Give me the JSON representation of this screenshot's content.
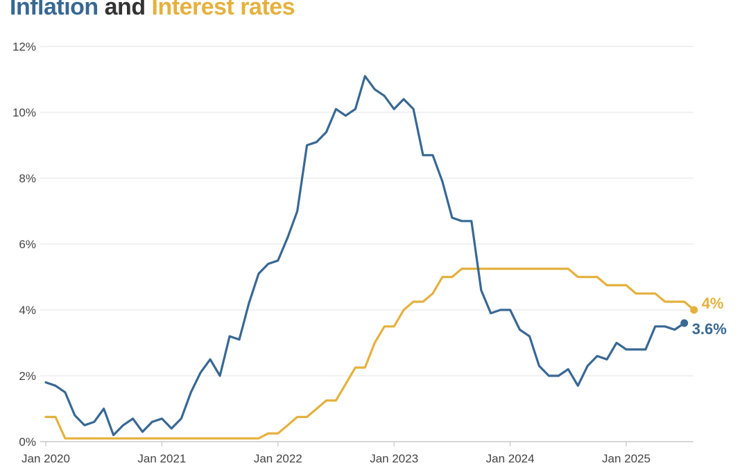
{
  "chart_data": {
    "type": "line",
    "title": {
      "part1": "Inflation",
      "part2": " and ",
      "part3": "Interest rates"
    },
    "xlabel": "",
    "ylabel": "",
    "x_start": "2020-01",
    "x_range": [
      "2020-01",
      "2025-08"
    ],
    "ylim": [
      0,
      12
    ],
    "y_ticks": [
      0,
      2,
      4,
      6,
      8,
      10,
      12
    ],
    "y_tick_labels": [
      "0%",
      "2%",
      "4%",
      "6%",
      "8%",
      "10%",
      "12%"
    ],
    "x_ticks": [
      "2020-01",
      "2021-01",
      "2022-01",
      "2023-01",
      "2024-01",
      "2025-01"
    ],
    "x_tick_labels": [
      "Jan 2020",
      "Jan 2021",
      "Jan 2022",
      "Jan 2023",
      "Jan 2024",
      "Jan 2025"
    ],
    "grid": true,
    "series": [
      {
        "name": "Inflation",
        "color": "#386894",
        "end_label": "3.6%",
        "values": [
          1.8,
          1.7,
          1.5,
          0.8,
          0.5,
          0.6,
          1.0,
          0.2,
          0.5,
          0.7,
          0.3,
          0.6,
          0.7,
          0.4,
          0.7,
          1.5,
          2.1,
          2.5,
          2.0,
          3.2,
          3.1,
          4.2,
          5.1,
          5.4,
          5.5,
          6.2,
          7.0,
          9.0,
          9.1,
          9.4,
          10.1,
          9.9,
          10.1,
          11.1,
          10.7,
          10.5,
          10.1,
          10.4,
          10.1,
          8.7,
          8.7,
          7.9,
          6.8,
          6.7,
          6.7,
          4.6,
          3.9,
          4.0,
          4.0,
          3.4,
          3.2,
          2.3,
          2.0,
          2.0,
          2.2,
          1.7,
          2.3,
          2.6,
          2.5,
          3.0,
          2.8,
          2.8,
          2.8,
          3.5,
          3.5,
          3.4,
          3.6
        ]
      },
      {
        "name": "Interest rates",
        "color": "#e5b13e",
        "end_label": "4%",
        "values": [
          0.75,
          0.75,
          0.1,
          0.1,
          0.1,
          0.1,
          0.1,
          0.1,
          0.1,
          0.1,
          0.1,
          0.1,
          0.1,
          0.1,
          0.1,
          0.1,
          0.1,
          0.1,
          0.1,
          0.1,
          0.1,
          0.1,
          0.1,
          0.25,
          0.25,
          0.5,
          0.75,
          0.75,
          1.0,
          1.25,
          1.25,
          1.75,
          2.25,
          2.25,
          3.0,
          3.5,
          3.5,
          4.0,
          4.25,
          4.25,
          4.5,
          5.0,
          5.0,
          5.25,
          5.25,
          5.25,
          5.25,
          5.25,
          5.25,
          5.25,
          5.25,
          5.25,
          5.25,
          5.25,
          5.25,
          5.0,
          5.0,
          5.0,
          4.75,
          4.75,
          4.75,
          4.5,
          4.5,
          4.5,
          4.25,
          4.25,
          4.25,
          4.0
        ]
      }
    ]
  }
}
